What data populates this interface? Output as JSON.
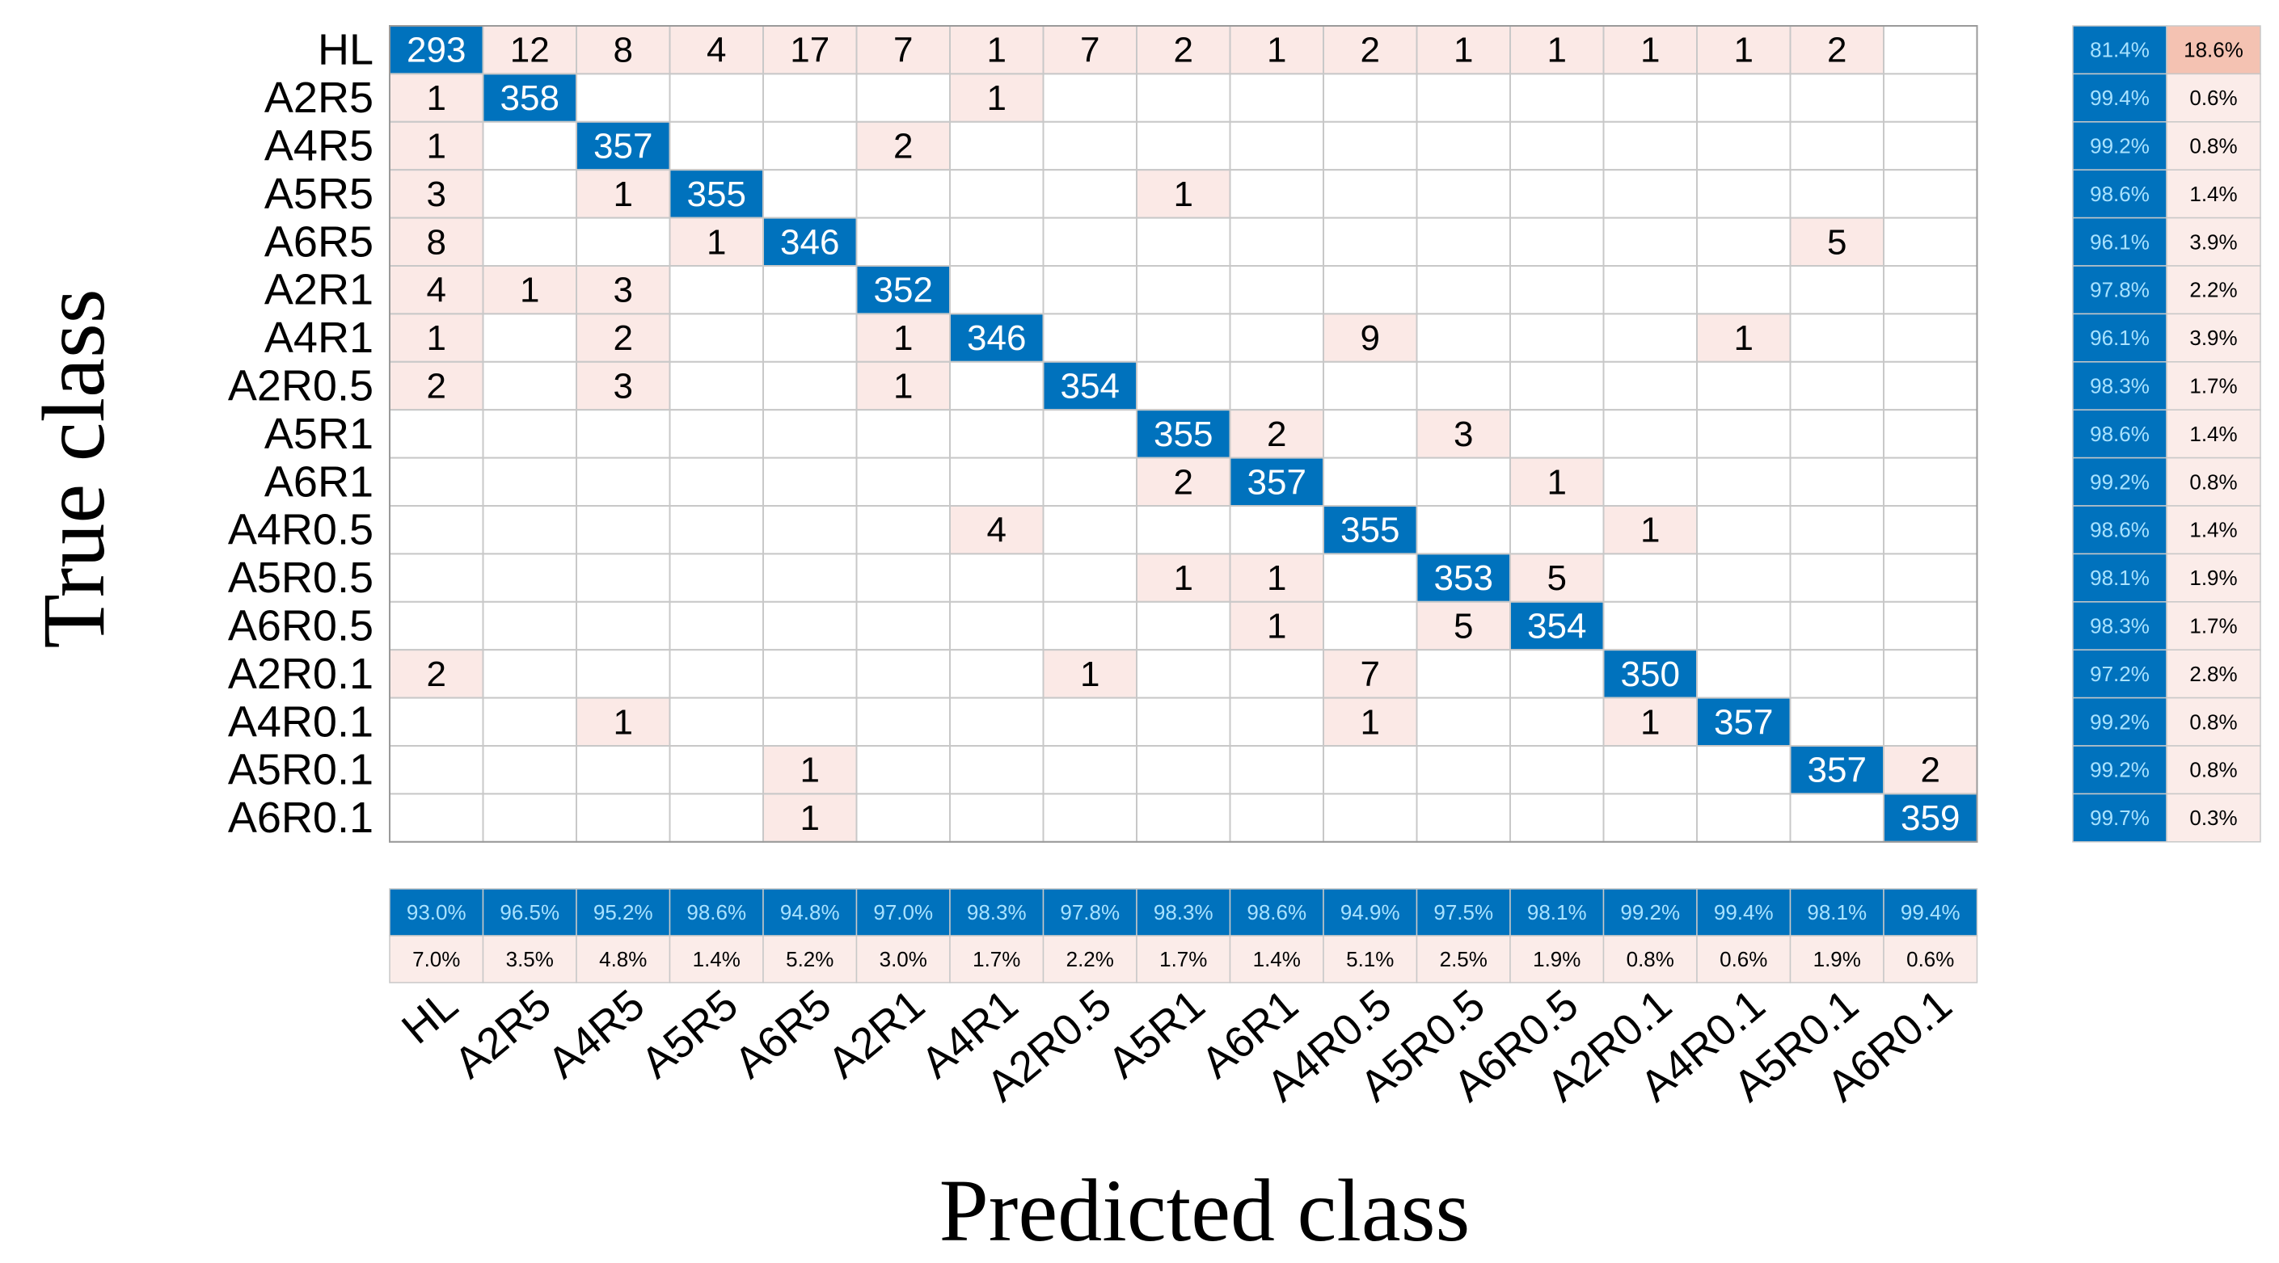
{
  "chart_data": {
    "type": "heatmap",
    "subtype": "confusion-matrix",
    "xlabel": "Predicted class",
    "ylabel": "True class",
    "classes": [
      "HL",
      "A2R5",
      "A4R5",
      "A5R5",
      "A6R5",
      "A2R1",
      "A4R1",
      "A2R0.5",
      "A5R1",
      "A6R1",
      "A4R0.5",
      "A5R0.5",
      "A6R0.5",
      "A2R0.1",
      "A4R0.1",
      "A5R0.1",
      "A6R0.1"
    ],
    "matrix": [
      [
        293,
        12,
        8,
        4,
        17,
        7,
        1,
        7,
        2,
        1,
        2,
        1,
        1,
        1,
        1,
        2,
        0
      ],
      [
        1,
        358,
        0,
        0,
        0,
        0,
        1,
        0,
        0,
        0,
        0,
        0,
        0,
        0,
        0,
        0,
        0
      ],
      [
        1,
        0,
        357,
        0,
        0,
        2,
        0,
        0,
        0,
        0,
        0,
        0,
        0,
        0,
        0,
        0,
        0
      ],
      [
        3,
        0,
        1,
        355,
        0,
        0,
        0,
        0,
        1,
        0,
        0,
        0,
        0,
        0,
        0,
        0,
        0
      ],
      [
        8,
        0,
        0,
        1,
        346,
        0,
        0,
        0,
        0,
        0,
        0,
        0,
        0,
        0,
        0,
        5,
        0
      ],
      [
        4,
        1,
        3,
        0,
        0,
        352,
        0,
        0,
        0,
        0,
        0,
        0,
        0,
        0,
        0,
        0,
        0
      ],
      [
        1,
        0,
        2,
        0,
        0,
        1,
        346,
        0,
        0,
        0,
        9,
        0,
        0,
        0,
        1,
        0,
        0
      ],
      [
        2,
        0,
        3,
        0,
        0,
        1,
        0,
        354,
        0,
        0,
        0,
        0,
        0,
        0,
        0,
        0,
        0
      ],
      [
        0,
        0,
        0,
        0,
        0,
        0,
        0,
        0,
        355,
        2,
        0,
        3,
        0,
        0,
        0,
        0,
        0
      ],
      [
        0,
        0,
        0,
        0,
        0,
        0,
        0,
        0,
        2,
        357,
        0,
        0,
        1,
        0,
        0,
        0,
        0
      ],
      [
        0,
        0,
        0,
        0,
        0,
        0,
        4,
        0,
        0,
        0,
        355,
        0,
        0,
        1,
        0,
        0,
        0
      ],
      [
        0,
        0,
        0,
        0,
        0,
        0,
        0,
        0,
        1,
        1,
        0,
        353,
        5,
        0,
        0,
        0,
        0
      ],
      [
        0,
        0,
        0,
        0,
        0,
        0,
        0,
        0,
        0,
        1,
        0,
        5,
        354,
        0,
        0,
        0,
        0
      ],
      [
        2,
        0,
        0,
        0,
        0,
        0,
        0,
        1,
        0,
        0,
        7,
        0,
        0,
        350,
        0,
        0,
        0
      ],
      [
        0,
        0,
        1,
        0,
        0,
        0,
        0,
        0,
        0,
        0,
        1,
        0,
        0,
        1,
        357,
        0,
        0
      ],
      [
        0,
        0,
        0,
        0,
        1,
        0,
        0,
        0,
        0,
        0,
        0,
        0,
        0,
        0,
        0,
        357,
        2
      ],
      [
        0,
        0,
        0,
        0,
        1,
        0,
        0,
        0,
        0,
        0,
        0,
        0,
        0,
        0,
        0,
        0,
        359
      ]
    ],
    "row_summary_correct": [
      "81.4%",
      "99.4%",
      "99.2%",
      "98.6%",
      "96.1%",
      "97.8%",
      "96.1%",
      "98.3%",
      "98.6%",
      "99.2%",
      "98.6%",
      "98.1%",
      "98.3%",
      "97.2%",
      "99.2%",
      "99.2%",
      "99.7%"
    ],
    "row_summary_incorrect": [
      "18.6%",
      "0.6%",
      "0.8%",
      "1.4%",
      "3.9%",
      "2.2%",
      "3.9%",
      "1.7%",
      "1.4%",
      "0.8%",
      "1.4%",
      "1.9%",
      "1.7%",
      "2.8%",
      "0.8%",
      "0.8%",
      "0.3%"
    ],
    "col_summary_correct": [
      "93.0%",
      "96.5%",
      "95.2%",
      "98.6%",
      "94.8%",
      "97.0%",
      "98.3%",
      "97.8%",
      "98.3%",
      "98.6%",
      "94.9%",
      "97.5%",
      "98.1%",
      "99.2%",
      "99.4%",
      "98.1%",
      "99.4%"
    ],
    "col_summary_incorrect": [
      "7.0%",
      "3.5%",
      "4.8%",
      "1.4%",
      "5.2%",
      "3.0%",
      "1.7%",
      "2.2%",
      "1.7%",
      "1.4%",
      "5.1%",
      "2.5%",
      "1.9%",
      "0.8%",
      "0.6%",
      "1.9%",
      "0.6%"
    ],
    "colors": {
      "diagonal": "#0072bd",
      "off_diagonal": "#fbe9e6",
      "summary_correct": "#0072bd",
      "summary_incorrect": "#fbece9",
      "summary_incorrect_strong": "#f4c2b2",
      "summary_correct_text": "#a8e2ff",
      "grid": "#c8c8c8"
    }
  }
}
